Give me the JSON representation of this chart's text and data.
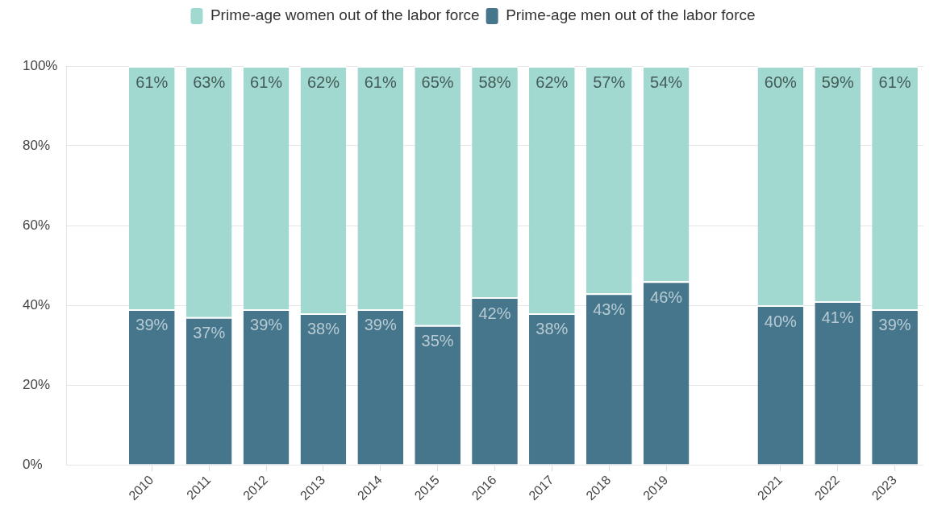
{
  "chart_data": {
    "type": "bar",
    "stacked": true,
    "categories": [
      null,
      "2010",
      "2011",
      "2012",
      "2013",
      "2014",
      "2015",
      "2016",
      "2017",
      "2018",
      "2019",
      null,
      "2021",
      "2022",
      "2023"
    ],
    "series": [
      {
        "name": "Prime-age men out of the labor force",
        "color": "#45768c",
        "values": [
          null,
          39,
          37,
          39,
          38,
          39,
          35,
          42,
          38,
          43,
          46,
          null,
          40,
          41,
          39
        ],
        "value_labels": [
          null,
          "39%",
          "37%",
          "39%",
          "38%",
          "39%",
          "35%",
          "42%",
          "38%",
          "43%",
          "46%",
          null,
          "40%",
          "41%",
          "39%"
        ]
      },
      {
        "name": "Prime-age women out of the labor force",
        "color": "#a1d9d0",
        "values": [
          null,
          61,
          63,
          61,
          62,
          61,
          65,
          58,
          62,
          57,
          54,
          null,
          60,
          59,
          61
        ],
        "value_labels": [
          null,
          "61%",
          "63%",
          "61%",
          "62%",
          "61%",
          "65%",
          "58%",
          "62%",
          "57%",
          "54%",
          null,
          "60%",
          "59%",
          "61%"
        ]
      }
    ],
    "ylim": [
      0,
      100
    ],
    "yticks": [
      {
        "value": 0,
        "label": "0%"
      },
      {
        "value": 20,
        "label": "20%"
      },
      {
        "value": 40,
        "label": "40%"
      },
      {
        "value": 60,
        "label": "60%"
      },
      {
        "value": 80,
        "label": "80%"
      },
      {
        "value": 100,
        "label": "100%"
      }
    ],
    "grid": "y",
    "legend": "top"
  }
}
